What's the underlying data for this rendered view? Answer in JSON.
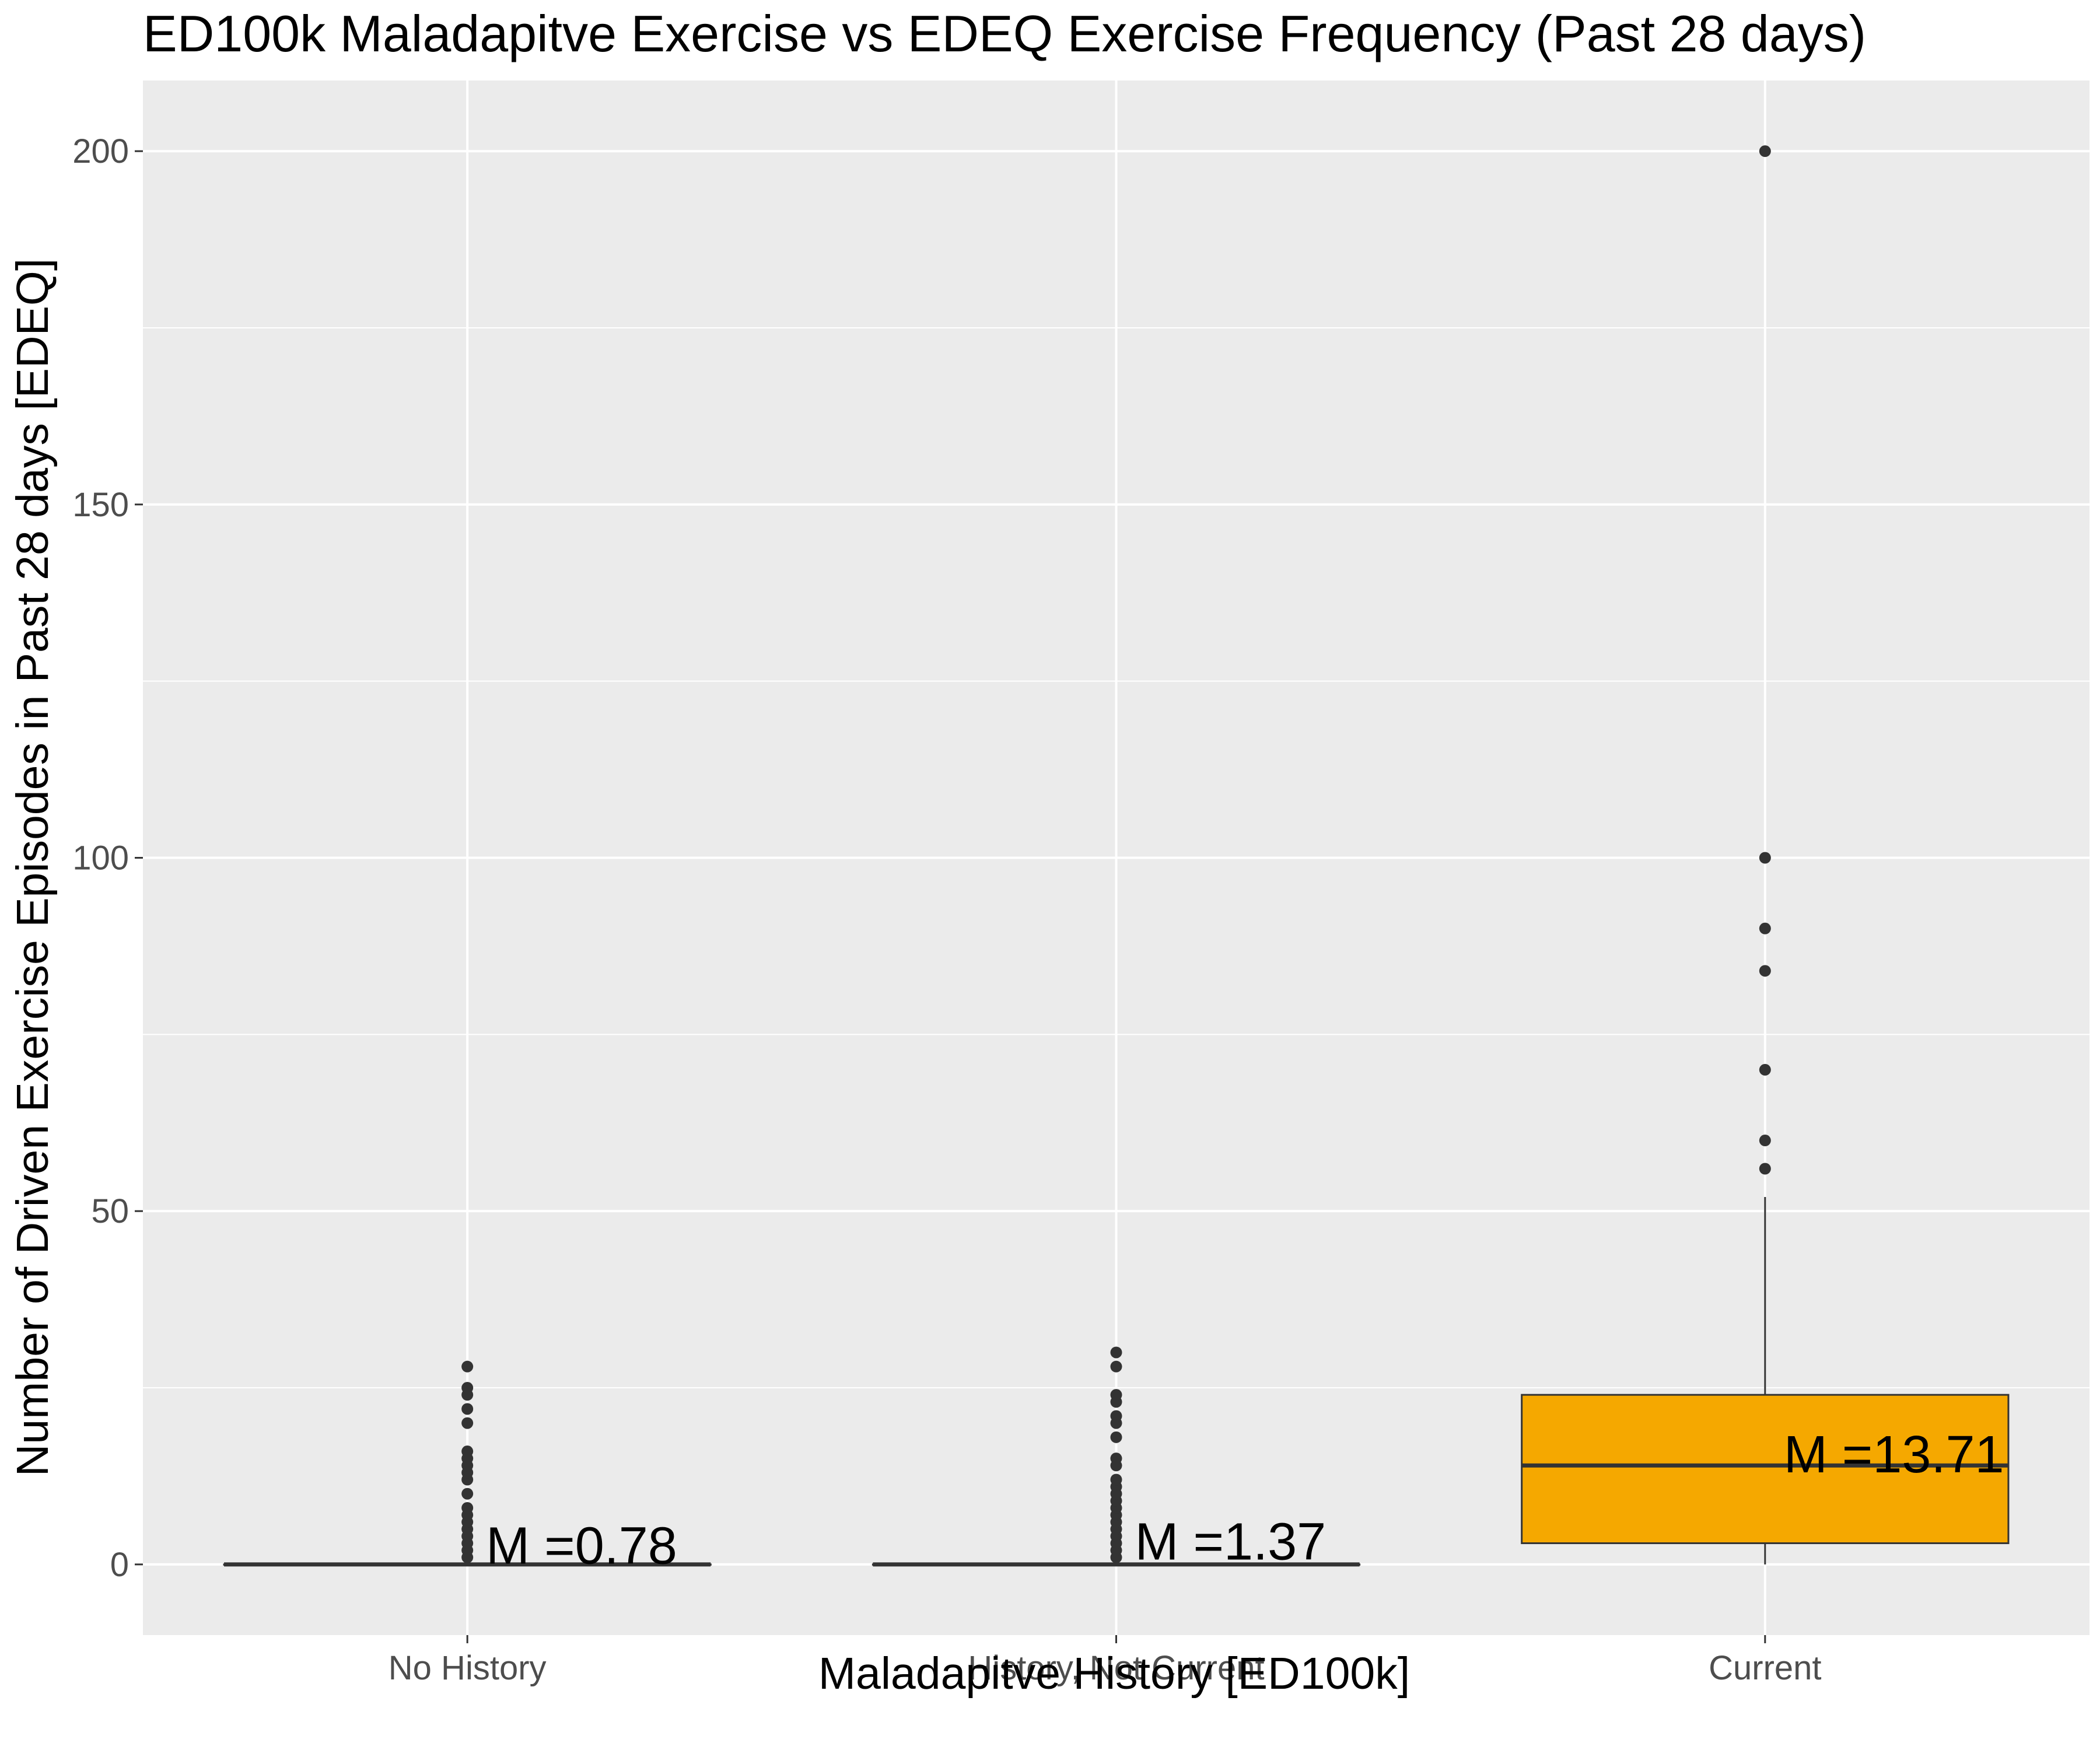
{
  "chart_data": {
    "type": "box",
    "title": "ED100k Maladapitve Exercise vs EDEQ Exercise Frequency (Past 28 days)",
    "xlabel": "Maladapitve History [ED100k]",
    "ylabel": "Number of Driven Exercise Episodes in Past 28 days [EDEQ]",
    "ylim": [
      -10,
      210
    ],
    "y_ticks": [
      0,
      50,
      100,
      150,
      200
    ],
    "grid": true,
    "legend": "none",
    "categories": [
      "No History",
      "History, Not Current",
      "Current"
    ],
    "boxes": [
      {
        "category": "No History",
        "min": 0,
        "q1": 0,
        "median": 0,
        "q3": 0,
        "max": 0,
        "outliers": [
          1,
          2,
          3,
          4,
          5,
          6,
          7,
          8,
          10,
          12,
          13,
          14,
          15,
          16,
          20,
          22,
          24,
          25,
          28
        ],
        "mean_label": "M =0.78",
        "fill": "#ebebeb"
      },
      {
        "category": "History, Not Current",
        "min": 0,
        "q1": 0,
        "median": 0,
        "q3": 0,
        "max": 0,
        "outliers": [
          1,
          2,
          3,
          4,
          5,
          6,
          7,
          8,
          9,
          10,
          11,
          12,
          14,
          15,
          18,
          20,
          21,
          23,
          24,
          28,
          30
        ],
        "mean_label": "M =1.37",
        "fill": "#ebebeb"
      },
      {
        "category": "Current",
        "min": 0,
        "q1": 3,
        "median": 14,
        "q3": 24,
        "max": 52,
        "outliers": [
          56,
          60,
          70,
          84,
          90,
          100,
          200
        ],
        "mean_label": "M =13.71",
        "fill": "#f5a800"
      }
    ],
    "colors": {
      "panel_background": "#ebebeb",
      "grid": "#ffffff",
      "current_box": "#f5a800",
      "points": "#333333"
    }
  }
}
